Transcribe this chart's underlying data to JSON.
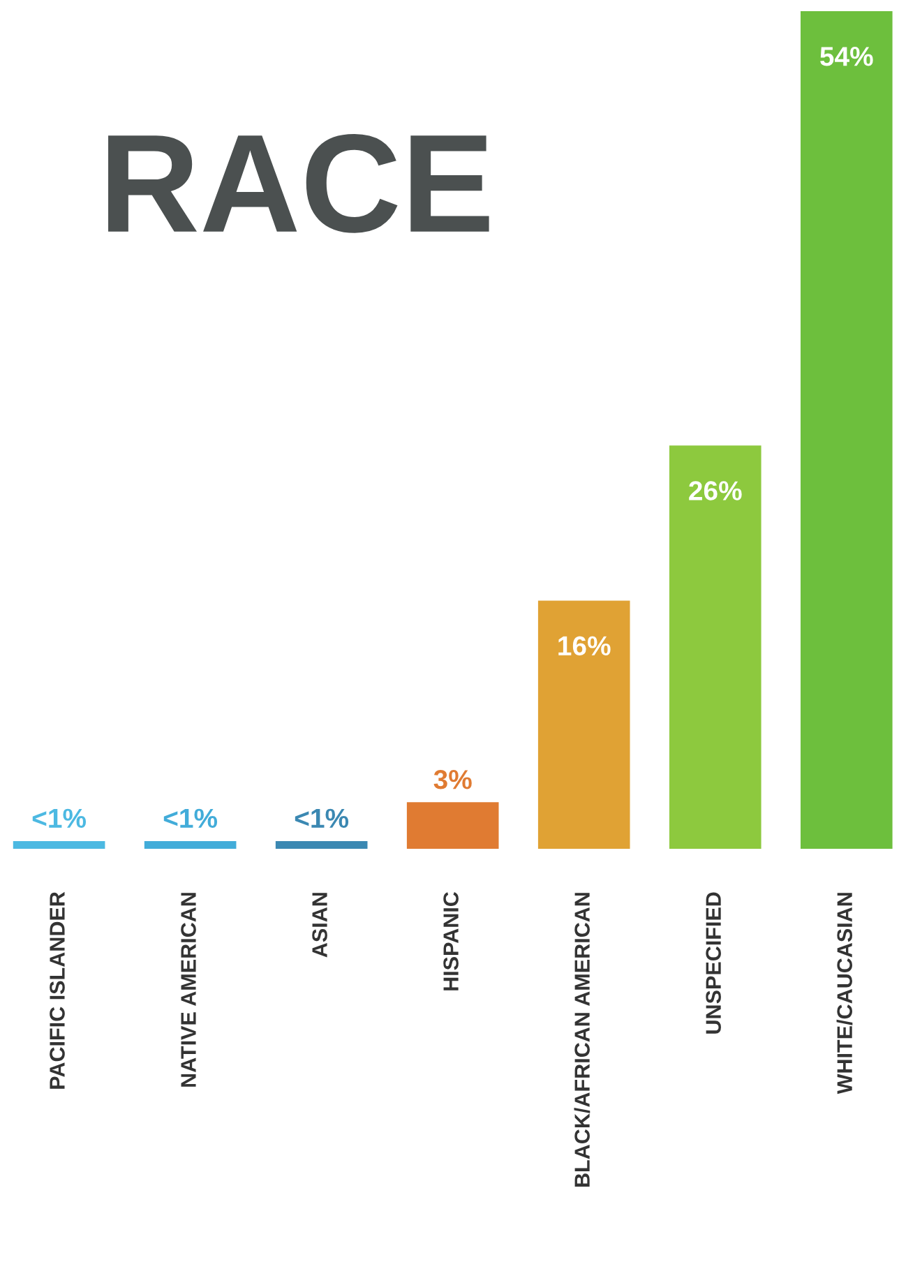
{
  "chart_data": {
    "type": "bar",
    "title": "RACE",
    "categories": [
      "PACIFIC ISLANDER",
      "NATIVE AMERICAN",
      "ASIAN",
      "HISPANIC",
      "BLACK/AFRICAN AMERICAN",
      "UNSPECIFIED",
      "WHITE/CAUCASIAN"
    ],
    "values": [
      0.5,
      0.5,
      0.5,
      3,
      16,
      26,
      54
    ],
    "colors": [
      "#4cb9e2",
      "#42acd9",
      "#3b88b2",
      "#e07b32",
      "#e0a234",
      "#8dc93e",
      "#6dbf3d"
    ],
    "value_labels": [
      "<1%",
      "<1%",
      "<1%",
      "3%",
      "16%",
      "26%",
      "54%"
    ],
    "ylim": [
      0,
      54
    ],
    "grid": false,
    "legend": false
  }
}
